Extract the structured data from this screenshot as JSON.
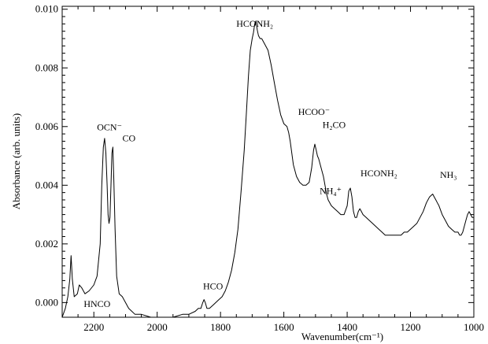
{
  "chart_data": {
    "type": "line",
    "xlabel": "Wavenumber(cm⁻¹)",
    "ylabel": "Absorbance (arb. units)",
    "xlim": [
      2300,
      1000
    ],
    "ylim": [
      -0.0005,
      0.0101
    ],
    "x_reversed": true,
    "grid": false,
    "legend": "none",
    "x_ticks": [
      2200,
      2000,
      1800,
      1600,
      1400,
      1200,
      1000
    ],
    "y_ticks": [
      0.0,
      0.002,
      0.004,
      0.006,
      0.008,
      0.01
    ],
    "x_tick_labels": [
      "2200",
      "2000",
      "1800",
      "1600",
      "1400",
      "1200",
      "1000"
    ],
    "y_tick_labels": [
      "0.000",
      "0.002",
      "0.004",
      "0.006",
      "0.008",
      "0.010"
    ],
    "series": [
      {
        "x": [
          2300,
          2290,
          2282,
          2276,
          2272,
          2268,
          2262,
          2252,
          2246,
          2238,
          2228,
          2215,
          2200,
          2190,
          2180,
          2175,
          2170,
          2166,
          2162,
          2158,
          2155,
          2152,
          2149,
          2146,
          2143,
          2140,
          2137,
          2133,
          2128,
          2120,
          2110,
          2100,
          2090,
          2080,
          2070,
          2050,
          2020,
          2000,
          1980,
          1950,
          1920,
          1900,
          1880,
          1870,
          1862,
          1856,
          1852,
          1848,
          1843,
          1835,
          1825,
          1815,
          1805,
          1795,
          1785,
          1775,
          1765,
          1755,
          1745,
          1735,
          1725,
          1718,
          1712,
          1706,
          1700,
          1696,
          1692,
          1688,
          1684,
          1680,
          1675,
          1670,
          1660,
          1650,
          1640,
          1630,
          1620,
          1610,
          1600,
          1590,
          1585,
          1580,
          1575,
          1570,
          1560,
          1550,
          1540,
          1530,
          1520,
          1512,
          1506,
          1502,
          1498,
          1494,
          1490,
          1485,
          1480,
          1475,
          1470,
          1465,
          1460,
          1450,
          1440,
          1430,
          1420,
          1410,
          1400,
          1395,
          1390,
          1385,
          1380,
          1375,
          1370,
          1365,
          1360,
          1355,
          1350,
          1340,
          1330,
          1320,
          1310,
          1300,
          1290,
          1280,
          1270,
          1260,
          1250,
          1240,
          1230,
          1220,
          1210,
          1200,
          1190,
          1180,
          1170,
          1160,
          1150,
          1140,
          1130,
          1125,
          1120,
          1115,
          1110,
          1100,
          1090,
          1080,
          1070,
          1060,
          1050,
          1045,
          1040,
          1035,
          1030,
          1025,
          1020,
          1015,
          1010,
          1005,
          1000
        ],
        "y": [
          -0.0005,
          -0.0002,
          0.0002,
          0.0008,
          0.0016,
          0.0008,
          0.0002,
          0.0003,
          0.0006,
          0.0005,
          0.0003,
          0.0004,
          0.0006,
          0.0009,
          0.002,
          0.004,
          0.0053,
          0.0056,
          0.0051,
          0.004,
          0.003,
          0.0027,
          0.0029,
          0.004,
          0.0051,
          0.0053,
          0.0042,
          0.0025,
          0.0009,
          0.0003,
          0.0002,
          0.0,
          -0.0002,
          -0.0003,
          -0.0004,
          -0.0004,
          -0.0005,
          -0.0005,
          -0.0005,
          -0.0005,
          -0.0004,
          -0.0004,
          -0.0003,
          -0.0002,
          -0.0002,
          0.0,
          0.0001,
          0.0,
          -0.0002,
          -0.0002,
          -0.0001,
          0.0,
          0.0001,
          0.0002,
          0.0004,
          0.0007,
          0.0011,
          0.0017,
          0.0025,
          0.0038,
          0.0052,
          0.0065,
          0.0077,
          0.0086,
          0.009,
          0.0092,
          0.0095,
          0.0096,
          0.0093,
          0.0091,
          0.009,
          0.009,
          0.0088,
          0.0086,
          0.0081,
          0.0075,
          0.0069,
          0.0064,
          0.0061,
          0.006,
          0.0058,
          0.0055,
          0.0051,
          0.0047,
          0.0043,
          0.0041,
          0.004,
          0.004,
          0.0041,
          0.0046,
          0.0052,
          0.0054,
          0.0052,
          0.005,
          0.0049,
          0.0047,
          0.0045,
          0.0043,
          0.004,
          0.0037,
          0.0035,
          0.0033,
          0.0032,
          0.0031,
          0.003,
          0.003,
          0.0033,
          0.0038,
          0.0039,
          0.0036,
          0.0031,
          0.0029,
          0.0029,
          0.0031,
          0.0032,
          0.0031,
          0.003,
          0.0029,
          0.0028,
          0.0027,
          0.0026,
          0.0025,
          0.0024,
          0.0023,
          0.0023,
          0.0023,
          0.0023,
          0.0023,
          0.0023,
          0.0024,
          0.0024,
          0.0025,
          0.0026,
          0.0027,
          0.0029,
          0.0031,
          0.0034,
          0.0036,
          0.0037,
          0.0036,
          0.0035,
          0.0034,
          0.0033,
          0.003,
          0.0028,
          0.0026,
          0.0025,
          0.0024,
          0.0024,
          0.0023,
          0.0023,
          0.0024,
          0.0026,
          0.0028,
          0.003,
          0.0031,
          0.003,
          0.0029,
          0.0029
        ]
      }
    ],
    "annotations": [
      {
        "text": "HCONH₂",
        "x": 1750,
        "y": 0.0094
      },
      {
        "text": "OCN⁻",
        "x": 2190,
        "y": 0.00588
      },
      {
        "text": "CO",
        "x": 2110,
        "y": 0.0055
      },
      {
        "text": "HCOO⁻",
        "x": 1555,
        "y": 0.0064
      },
      {
        "text": "H₂CO",
        "x": 1478,
        "y": 0.00595
      },
      {
        "text": "NH₄⁺",
        "x": 1487,
        "y": 0.0037
      },
      {
        "text": "HCONH₂",
        "x": 1358,
        "y": 0.0043
      },
      {
        "text": "NH₃",
        "x": 1107,
        "y": 0.00425
      },
      {
        "text": "HCO",
        "x": 1855,
        "y": 0.00045
      },
      {
        "text": "HNCO",
        "x": 2232,
        "y": -0.00015
      }
    ]
  }
}
